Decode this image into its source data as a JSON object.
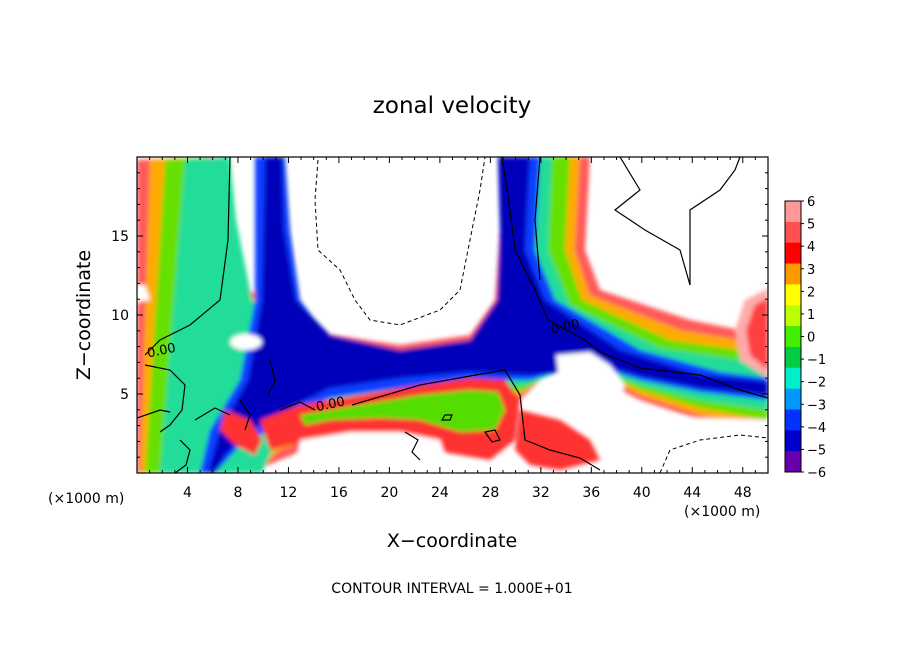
{
  "chart_data": {
    "type": "heatmap",
    "title": "zonal velocity",
    "xlabel": "X−coordinate",
    "ylabel": "Z−coordinate",
    "x_unit_left": "(×1000 m)",
    "x_unit_right": "(×1000 m)",
    "footer": "CONTOUR INTERVAL = 1.000E+01",
    "xlim": [
      0,
      50
    ],
    "ylim": [
      0,
      20
    ],
    "x_ticks": [
      4,
      8,
      12,
      16,
      20,
      24,
      28,
      32,
      36,
      40,
      44,
      48
    ],
    "x_tick_labels": [
      "4",
      "8",
      "12",
      "16",
      "20",
      "24",
      "28",
      "32",
      "36",
      "40",
      "44",
      "48"
    ],
    "y_ticks": [
      5,
      10,
      15
    ],
    "y_tick_labels": [
      "5",
      "10",
      "15"
    ],
    "colorbar": {
      "levels": [
        6,
        5,
        4,
        3,
        2,
        1,
        0,
        -1,
        -2,
        -3,
        -4,
        -5,
        -6
      ],
      "labels": [
        "6",
        "5",
        "4",
        "3",
        "2",
        "1",
        "0",
        "−1",
        "−2",
        "−3",
        "−4",
        "−5",
        "−6"
      ],
      "colors": [
        "#ff9999",
        "#ff5050",
        "#ff0000",
        "#ff9900",
        "#ffff00",
        "#bbff00",
        "#44ee00",
        "#00cc44",
        "#00eecc",
        "#0099ff",
        "#0033ff",
        "#0000cc",
        "#6600aa"
      ]
    },
    "contour_labels": [
      {
        "text": "0.00",
        "x": 2.0,
        "y": 7.5
      },
      {
        "text": "0.00",
        "x": 15.4,
        "y": 4.1
      },
      {
        "text": "0.00",
        "x": 34.0,
        "y": 9.0
      }
    ]
  }
}
